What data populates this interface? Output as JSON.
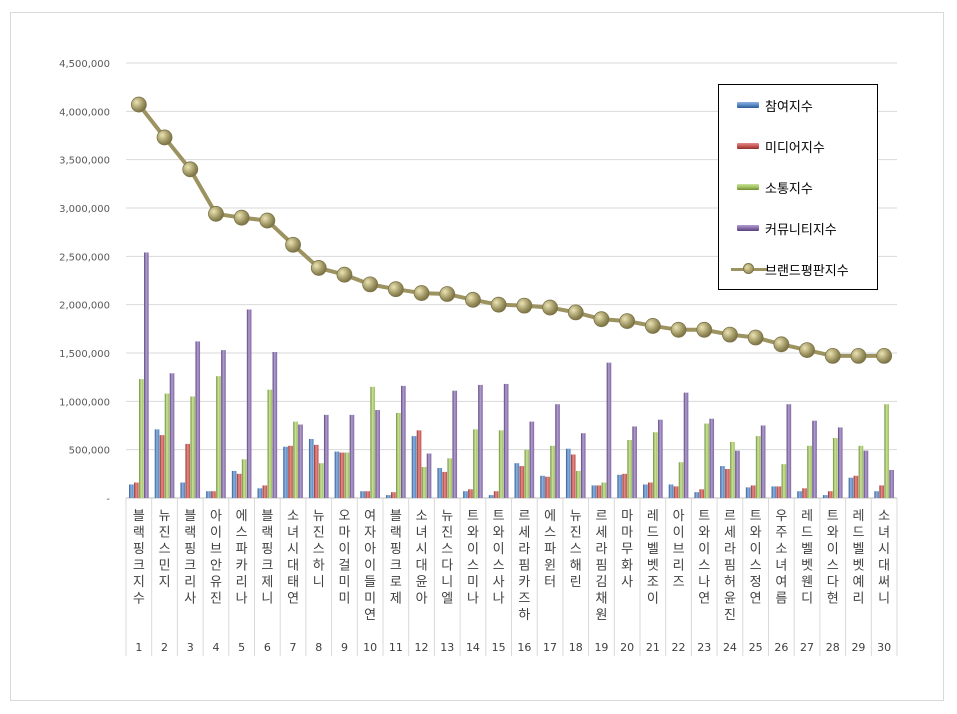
{
  "chart_data": {
    "type": "bar",
    "ylim": [
      0,
      4500000
    ],
    "y_ticks": [
      "-",
      "500,000",
      "1,000,000",
      "1,500,000",
      "2,000,000",
      "2,500,000",
      "3,000,000",
      "3,500,000",
      "4,000,000",
      "4,500,000"
    ],
    "legend_position": "top-right",
    "grid": true,
    "ranks": [
      "1",
      "2",
      "3",
      "4",
      "5",
      "6",
      "7",
      "8",
      "9",
      "10",
      "11",
      "12",
      "13",
      "14",
      "15",
      "16",
      "17",
      "18",
      "19",
      "20",
      "21",
      "22",
      "23",
      "24",
      "25",
      "26",
      "27",
      "28",
      "29",
      "30"
    ],
    "categories": [
      "블랙핑크지수",
      "뉴진스민지",
      "블랙핑크리사",
      "아이브안유진",
      "에스파카리나",
      "블랙핑크제니",
      "소녀시대태연",
      "뉴진스하니",
      "오마이걸미미",
      "여자아이들미연",
      "블랙핑크로제",
      "소녀시대윤아",
      "뉴진스다니엘",
      "트와이스미나",
      "트와이스사나",
      "르세라핌카즈하",
      "에스파윈터",
      "뉴진스해린",
      "르세라핌김채원",
      "마마무화사",
      "레드벨벳조이",
      "아이브리즈",
      "트와이스나연",
      "르세라핌허윤진",
      "트와이스정연",
      "우주소녀여름",
      "레드벨벳웬디",
      "트와이스다현",
      "레드벨벳예리",
      "소녀시대써니"
    ],
    "series": [
      {
        "name": "참여지수",
        "type": "bar",
        "color": "#4f81bd",
        "values": [
          140000,
          710000,
          160000,
          70000,
          280000,
          100000,
          530000,
          610000,
          480000,
          70000,
          30000,
          640000,
          310000,
          70000,
          30000,
          360000,
          230000,
          510000,
          130000,
          240000,
          140000,
          140000,
          60000,
          330000,
          110000,
          120000,
          70000,
          30000,
          210000,
          70000
        ]
      },
      {
        "name": "미디어지수",
        "type": "bar",
        "color": "#c0504d",
        "values": [
          160000,
          650000,
          560000,
          70000,
          250000,
          130000,
          540000,
          550000,
          470000,
          70000,
          60000,
          700000,
          270000,
          90000,
          70000,
          330000,
          220000,
          450000,
          130000,
          250000,
          160000,
          120000,
          90000,
          300000,
          130000,
          120000,
          100000,
          70000,
          230000,
          130000
        ]
      },
      {
        "name": "소통지수",
        "type": "bar",
        "color": "#9bbb59",
        "values": [
          1230000,
          1080000,
          1050000,
          1260000,
          400000,
          1120000,
          790000,
          360000,
          470000,
          1150000,
          880000,
          320000,
          410000,
          710000,
          700000,
          500000,
          540000,
          280000,
          160000,
          600000,
          680000,
          370000,
          770000,
          580000,
          640000,
          350000,
          540000,
          620000,
          540000,
          970000
        ]
      },
      {
        "name": "커뮤니티지수",
        "type": "bar",
        "color": "#8064a2",
        "values": [
          2540000,
          1290000,
          1620000,
          1530000,
          1950000,
          1510000,
          760000,
          860000,
          860000,
          910000,
          1160000,
          460000,
          1110000,
          1170000,
          1180000,
          790000,
          970000,
          670000,
          1400000,
          740000,
          810000,
          1090000,
          820000,
          490000,
          750000,
          970000,
          800000,
          730000,
          490000,
          290000
        ]
      },
      {
        "name": "브랜드평판지수",
        "type": "line",
        "color": "#9c9361",
        "values": [
          4070000,
          3730000,
          3400000,
          2940000,
          2900000,
          2870000,
          2620000,
          2380000,
          2310000,
          2210000,
          2160000,
          2120000,
          2110000,
          2050000,
          2000000,
          1990000,
          1970000,
          1920000,
          1850000,
          1830000,
          1780000,
          1740000,
          1740000,
          1690000,
          1660000,
          1590000,
          1530000,
          1470000,
          1470000,
          1470000
        ]
      }
    ]
  }
}
